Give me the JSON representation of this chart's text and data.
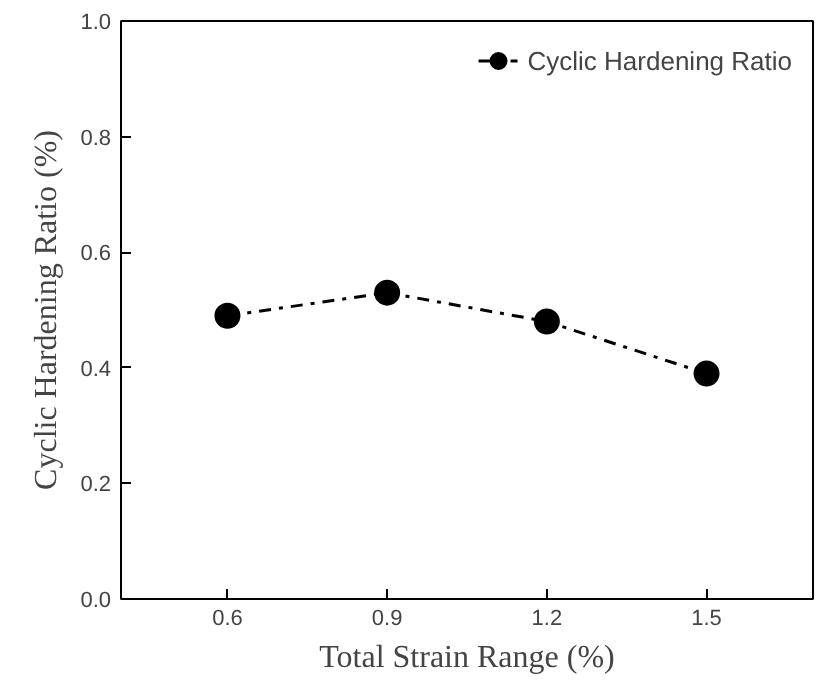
{
  "chart_data": {
    "type": "line",
    "xlabel": "Total Strain Range (%)",
    "ylabel": "Cyclic Hardening Ratio (%)",
    "x": [
      0.6,
      0.9,
      1.2,
      1.5
    ],
    "series": [
      {
        "name": "Cyclic Hardening Ratio",
        "color": "#000000",
        "values": [
          0.49,
          0.53,
          0.48,
          0.39
        ]
      }
    ],
    "xlim": [
      0.4,
      1.7
    ],
    "ylim": [
      0.0,
      1.0
    ],
    "xticks": [
      0.6,
      0.9,
      1.2,
      1.5
    ],
    "yticks": [
      {
        "value": 0.0,
        "label": "0.0"
      },
      {
        "value": 0.2,
        "label": "0.2"
      },
      {
        "value": 0.4,
        "label": "0.4"
      },
      {
        "value": 0.6,
        "label": "0.6"
      },
      {
        "value": 0.8,
        "label": "0.8"
      },
      {
        "value": 1.0,
        "label": "1.0"
      }
    ],
    "grid": false,
    "legend": "top right",
    "marker": "circle",
    "line_style": "dashdot"
  }
}
